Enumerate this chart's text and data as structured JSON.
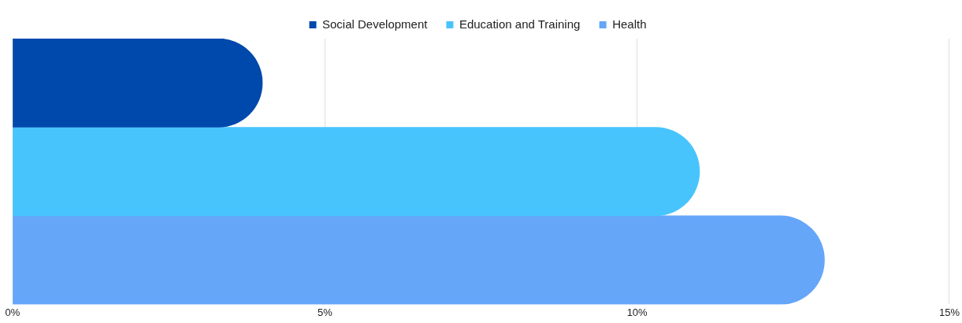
{
  "chart_data": {
    "type": "bar",
    "orientation": "horizontal",
    "categories": [
      null
    ],
    "series": [
      {
        "name": "Social Development",
        "color": "#0049ac",
        "values": [
          4
        ]
      },
      {
        "name": "Education and Training",
        "color": "#48c4fd",
        "values": [
          11
        ]
      },
      {
        "name": "Health",
        "color": "#65a6f9",
        "values": [
          13
        ]
      }
    ],
    "xlim": [
      0,
      15
    ],
    "xticks": [
      {
        "value": 0,
        "label": "0%"
      },
      {
        "value": 5,
        "label": "5%"
      },
      {
        "value": 10,
        "label": "10%"
      },
      {
        "value": 15,
        "label": "15%"
      }
    ],
    "grid": "x",
    "legend": "top"
  }
}
